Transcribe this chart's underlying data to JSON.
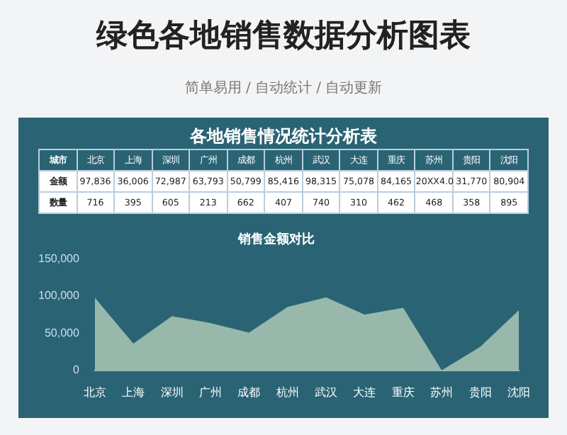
{
  "chart_data": {
    "type": "area",
    "title": "销售金额对比",
    "categories": [
      "北京",
      "上海",
      "深圳",
      "广州",
      "成都",
      "杭州",
      "武汉",
      "大连",
      "重庆",
      "苏州",
      "贵阳",
      "沈阳"
    ],
    "series": [
      {
        "name": "金额",
        "color": "#98b8ac",
        "values": [
          97836,
          36006,
          72987,
          63793,
          50799,
          85416,
          98315,
          75078,
          84165,
          0,
          31770,
          80904
        ],
        "value_labels": [
          "97,836",
          "36,006",
          "72,987",
          "63,793",
          "50,799",
          "85,416",
          "98,315",
          "75,078",
          "84,165",
          null,
          "31,770",
          "80,904"
        ]
      }
    ],
    "data_labels": true,
    "ylim": [
      0,
      150000
    ],
    "yticks": [
      {
        "value": 0,
        "label": "0"
      },
      {
        "value": 50000,
        "label": "50,000"
      },
      {
        "value": 100000,
        "label": "100,000"
      },
      {
        "value": 150000,
        "label": "150,000"
      }
    ],
    "grid": false,
    "legend": false,
    "annotations": [
      "绿色各地销售数据分析图表",
      "简单易用 / 自动统计 / 自动更新",
      "各地销售情况统计分析表",
      "城市",
      "20XX4.0",
      "数量",
      "716",
      "395",
      "605",
      "213",
      "662",
      "407",
      "740",
      "310",
      "462",
      "468",
      "358",
      "895"
    ]
  }
}
